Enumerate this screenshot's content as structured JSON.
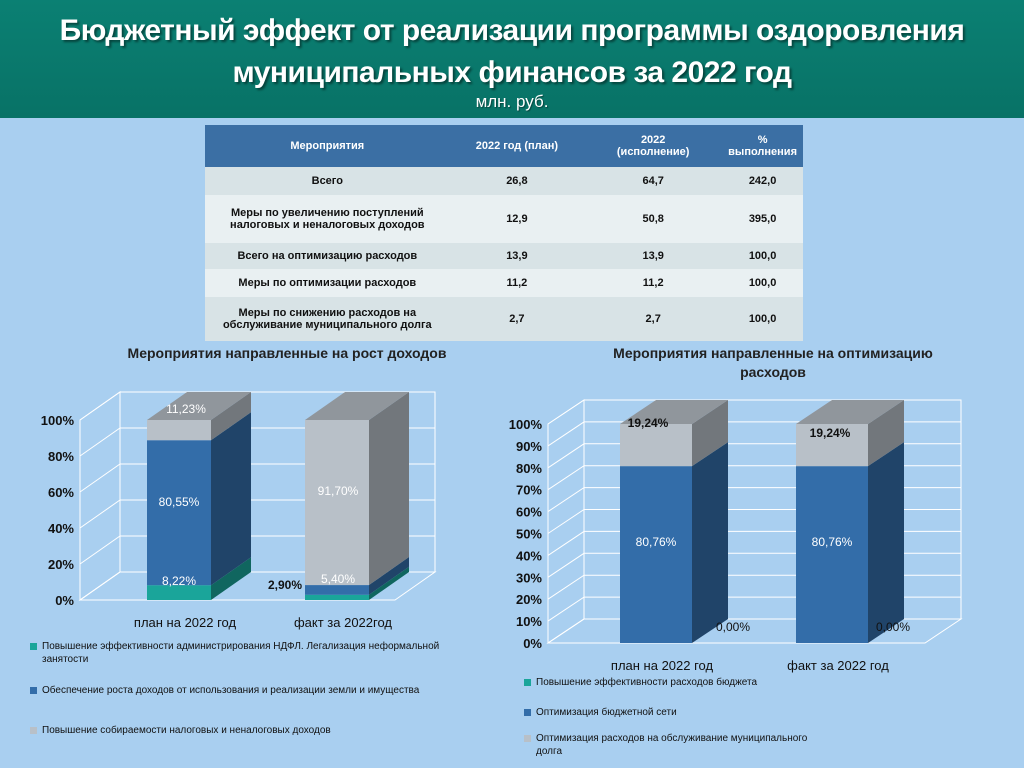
{
  "header": {
    "title_line1": "Бюджетный эффект от реализации программы оздоровления",
    "title_line2": "муниципальных финансов за  2022 год",
    "unit": "млн. руб."
  },
  "table": {
    "headers": [
      "Мероприятия",
      "2022 год (план)",
      "2022\n(исполнение)",
      "%\nвыполнения"
    ],
    "rows": [
      [
        "Всего",
        "26,8",
        "64,7",
        "242,0"
      ],
      [
        "Меры по увеличению поступлений налоговых и неналоговых доходов",
        "12,9",
        "50,8",
        "395,0"
      ],
      [
        "Всего на оптимизацию расходов",
        "13,9",
        "13,9",
        "100,0"
      ],
      [
        "Меры по оптимизации расходов",
        "11,2",
        "11,2",
        "100,0"
      ],
      [
        "Меры по снижению расходов на обслуживание муниципального долга",
        "2,7",
        "2,7",
        "100,0"
      ]
    ]
  },
  "colors": {
    "teal": "#1aa59a",
    "blue": "#336da9",
    "gray": "#b8c0c8"
  },
  "chart_data": [
    {
      "type": "bar",
      "stacked": true,
      "title": "Мероприятия направленные на рост доходов",
      "categories": [
        "план на 2022 год",
        "факт за 2022год"
      ],
      "series": [
        {
          "name": "Повышение эффективности администрирования НДФЛ. Легализация неформальной занятости",
          "values": [
            8.22,
            2.9
          ],
          "labels": [
            "8,22%",
            "2,90%"
          ]
        },
        {
          "name": "Обеспечение роста доходов от использования и реализации земли и имущества",
          "values": [
            80.55,
            5.4
          ],
          "labels": [
            "80,55%",
            "5,40%"
          ]
        },
        {
          "name": "Повышение собираемости налоговых и неналоговых доходов",
          "values": [
            11.23,
            91.7
          ],
          "labels": [
            "11,23%",
            "91,70%"
          ]
        }
      ],
      "ylim": [
        0,
        100
      ],
      "yticks": [
        "0%",
        "20%",
        "40%",
        "60%",
        "80%",
        "100%"
      ],
      "grid": true,
      "legend": "bottom"
    },
    {
      "type": "bar",
      "stacked": true,
      "title": "Мероприятия направленные на оптимизацию расходов",
      "categories": [
        "план на 2022 год",
        "факт за 2022 год"
      ],
      "series": [
        {
          "name": "Повышение эффективности расходов бюджета",
          "values": [
            0.0,
            0.0
          ],
          "labels": [
            "0,00%",
            "0,00%"
          ]
        },
        {
          "name": "Оптимизация бюджетной сети",
          "values": [
            80.76,
            80.76
          ],
          "labels": [
            "80,76%",
            "80,76%"
          ]
        },
        {
          "name": "Оптимизация расходов на обслуживание муниципального долга",
          "values": [
            19.24,
            19.24
          ],
          "labels": [
            "19,24%",
            "19,24%"
          ]
        }
      ],
      "ylim": [
        0,
        100
      ],
      "yticks": [
        "0%",
        "10%",
        "20%",
        "30%",
        "40%",
        "50%",
        "60%",
        "70%",
        "80%",
        "90%",
        "100%"
      ],
      "grid": true,
      "legend": "bottom"
    }
  ]
}
